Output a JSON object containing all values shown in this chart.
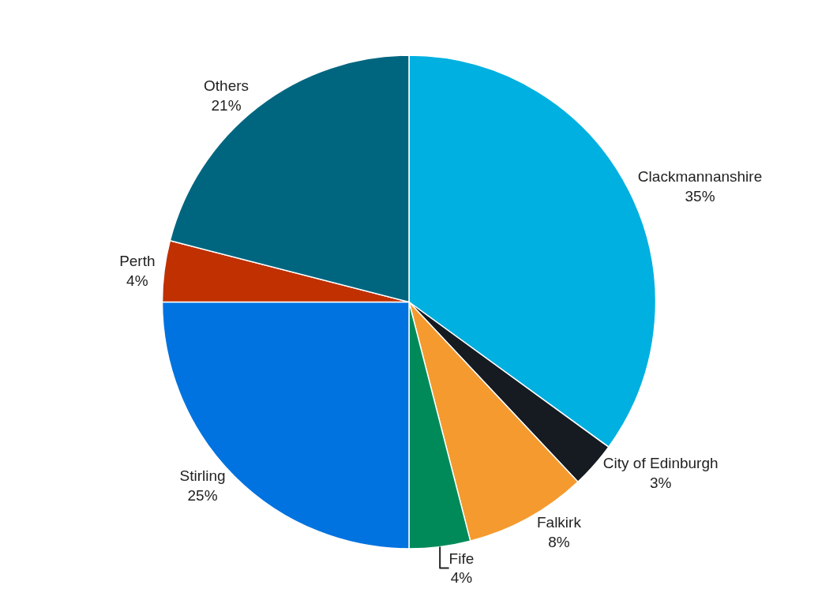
{
  "chart_data": {
    "type": "pie",
    "categories": [
      "Clackmannanshire",
      "City of Edinburgh",
      "Falkirk",
      "Fife",
      "Stirling",
      "Perth",
      "Others"
    ],
    "values": [
      35,
      3,
      8,
      4,
      25,
      4,
      21
    ],
    "value_labels": [
      "35%",
      "3%",
      "8%",
      "4%",
      "25%",
      "4%",
      "21%"
    ],
    "colors": [
      "#00b0e0",
      "#161b22",
      "#f59a2e",
      "#008a5a",
      "#0073e0",
      "#c03000",
      "#006680"
    ],
    "legend": false
  }
}
